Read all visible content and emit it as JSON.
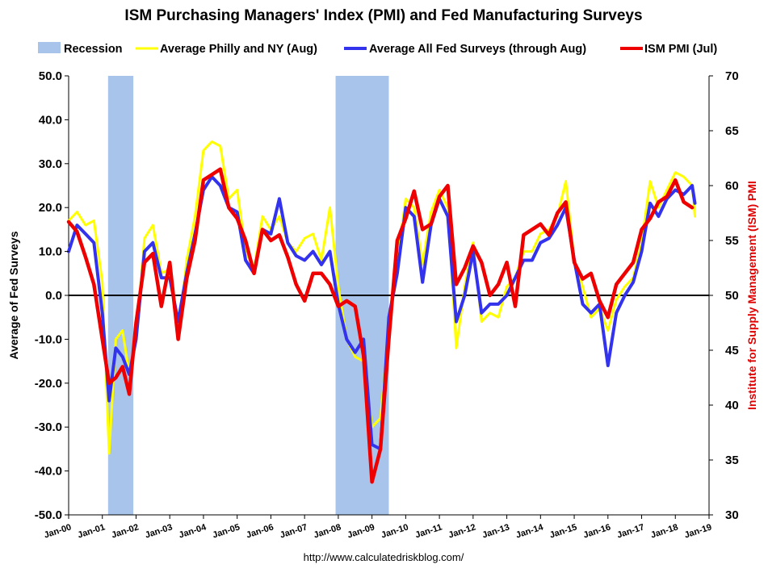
{
  "chart_data": {
    "type": "line",
    "title": "ISM Purchasing Managers' Index (PMI) and Fed Manufacturing Surveys",
    "ylabel": "Average of Fed Surveys",
    "y2label": "Institute for Supply Management (ISM) PMI",
    "source": "http://www.calculatedriskblog.com/",
    "ylim": [
      -50,
      50
    ],
    "y2lim": [
      30,
      70
    ],
    "yticks": [
      "50.0",
      "40.0",
      "30.0",
      "20.0",
      "10.0",
      "0.0",
      "-10.0",
      "-20.0",
      "-30.0",
      "-40.0",
      "-50.0"
    ],
    "y2ticks": [
      "70",
      "65",
      "60",
      "55",
      "50",
      "45",
      "40",
      "35",
      "30"
    ],
    "xlim": [
      2000.0,
      2019.0
    ],
    "xticks": [
      "Jan-00",
      "Jan-01",
      "Jan-02",
      "Jan-03",
      "Jan-04",
      "Jan-05",
      "Jan-06",
      "Jan-07",
      "Jan-08",
      "Jan-09",
      "Jan-10",
      "Jan-11",
      "Jan-12",
      "Jan-13",
      "Jan-14",
      "Jan-15",
      "Jan-16",
      "Jan-17",
      "Jan-18",
      "Jan-19"
    ],
    "grid": false,
    "zero_line": true,
    "legend_position": "top",
    "recessions": [
      {
        "label": "Recession",
        "start": 2001.17,
        "end": 2001.92,
        "color": "#a9c4eb"
      },
      {
        "label": "Recession",
        "start": 2007.92,
        "end": 2009.5,
        "color": "#a9c4eb"
      }
    ],
    "series": [
      {
        "name": "Average Philly and NY (Aug)",
        "axis": "left",
        "color": "#ffff00",
        "width": 3,
        "x": [
          2000.0,
          2000.25,
          2000.5,
          2000.75,
          2001.0,
          2001.2,
          2001.4,
          2001.6,
          2001.8,
          2002.0,
          2002.25,
          2002.5,
          2002.75,
          2003.0,
          2003.25,
          2003.5,
          2003.75,
          2004.0,
          2004.25,
          2004.5,
          2004.75,
          2005.0,
          2005.25,
          2005.5,
          2005.75,
          2006.0,
          2006.25,
          2006.5,
          2006.75,
          2007.0,
          2007.25,
          2007.5,
          2007.75,
          2008.0,
          2008.25,
          2008.5,
          2008.75,
          2009.0,
          2009.25,
          2009.5,
          2009.75,
          2010.0,
          2010.25,
          2010.5,
          2010.75,
          2011.0,
          2011.25,
          2011.5,
          2011.75,
          2012.0,
          2012.25,
          2012.5,
          2012.75,
          2013.0,
          2013.25,
          2013.5,
          2013.75,
          2014.0,
          2014.25,
          2014.5,
          2014.75,
          2015.0,
          2015.25,
          2015.5,
          2015.75,
          2016.0,
          2016.25,
          2016.5,
          2016.75,
          2017.0,
          2017.25,
          2017.5,
          2017.75,
          2018.0,
          2018.25,
          2018.5,
          2018.58
        ],
        "values": [
          17,
          19,
          16,
          17,
          3,
          -36,
          -10,
          -8,
          -18,
          -10,
          13,
          16,
          5,
          6,
          -10,
          8,
          18,
          33,
          35,
          34,
          22,
          24,
          10,
          6,
          18,
          15,
          18,
          12,
          10,
          13,
          14,
          8,
          20,
          2,
          -10,
          -14,
          -15,
          -30,
          -28,
          -8,
          8,
          22,
          20,
          7,
          19,
          24,
          20,
          -12,
          2,
          12,
          -6,
          -4,
          -5,
          2,
          4,
          10,
          10,
          14,
          15,
          18,
          26,
          8,
          2,
          -5,
          -3,
          -8,
          -1,
          2,
          4,
          12,
          26,
          20,
          24,
          28,
          27,
          25,
          18
        ]
      },
      {
        "name": "Average All Fed Surveys (through Aug)",
        "axis": "left",
        "color": "#3333ee",
        "width": 4,
        "x": [
          2000.0,
          2000.25,
          2000.5,
          2000.75,
          2001.0,
          2001.2,
          2001.4,
          2001.6,
          2001.8,
          2002.0,
          2002.25,
          2002.5,
          2002.75,
          2003.0,
          2003.25,
          2003.5,
          2003.75,
          2004.0,
          2004.25,
          2004.5,
          2004.75,
          2005.0,
          2005.25,
          2005.5,
          2005.75,
          2006.0,
          2006.25,
          2006.5,
          2006.75,
          2007.0,
          2007.25,
          2007.5,
          2007.75,
          2008.0,
          2008.25,
          2008.5,
          2008.75,
          2009.0,
          2009.25,
          2009.5,
          2009.75,
          2010.0,
          2010.25,
          2010.5,
          2010.75,
          2011.0,
          2011.25,
          2011.5,
          2011.75,
          2012.0,
          2012.25,
          2012.5,
          2012.75,
          2013.0,
          2013.25,
          2013.5,
          2013.75,
          2014.0,
          2014.25,
          2014.5,
          2014.75,
          2015.0,
          2015.25,
          2015.5,
          2015.75,
          2016.0,
          2016.25,
          2016.5,
          2016.75,
          2017.0,
          2017.25,
          2017.5,
          2017.75,
          2018.0,
          2018.25,
          2018.5,
          2018.58
        ],
        "values": [
          10,
          16,
          14,
          12,
          -4,
          -24,
          -12,
          -14,
          -18,
          -10,
          10,
          12,
          4,
          4,
          -6,
          5,
          14,
          24,
          27,
          25,
          20,
          19,
          8,
          5,
          15,
          14,
          22,
          12,
          9,
          8,
          10,
          7,
          10,
          -2,
          -10,
          -13,
          -10,
          -34,
          -35,
          -5,
          5,
          20,
          18,
          3,
          16,
          22,
          18,
          -6,
          0,
          10,
          -4,
          -2,
          -2,
          0,
          4,
          8,
          8,
          12,
          13,
          16,
          20,
          8,
          -2,
          -4,
          -2,
          -16,
          -4,
          0,
          3,
          10,
          21,
          18,
          22,
          24,
          23,
          25,
          21
        ]
      },
      {
        "name": "ISM PMI (Jul)",
        "axis": "right",
        "color": "#ee0000",
        "width": 4.5,
        "x": [
          2000.0,
          2000.25,
          2000.5,
          2000.75,
          2001.0,
          2001.2,
          2001.4,
          2001.6,
          2001.8,
          2002.0,
          2002.25,
          2002.5,
          2002.75,
          2003.0,
          2003.25,
          2003.5,
          2003.75,
          2004.0,
          2004.25,
          2004.5,
          2004.75,
          2005.0,
          2005.25,
          2005.5,
          2005.75,
          2006.0,
          2006.25,
          2006.5,
          2006.75,
          2007.0,
          2007.25,
          2007.5,
          2007.75,
          2008.0,
          2008.25,
          2008.5,
          2008.75,
          2009.0,
          2009.25,
          2009.5,
          2009.75,
          2010.0,
          2010.25,
          2010.5,
          2010.75,
          2011.0,
          2011.25,
          2011.5,
          2011.75,
          2012.0,
          2012.25,
          2012.5,
          2012.75,
          2013.0,
          2013.25,
          2013.5,
          2013.75,
          2014.0,
          2014.25,
          2014.5,
          2014.75,
          2015.0,
          2015.25,
          2015.5,
          2015.75,
          2016.0,
          2016.25,
          2016.5,
          2016.75,
          2017.0,
          2017.25,
          2017.5,
          2017.75,
          2018.0,
          2018.25,
          2018.5
        ],
        "values": [
          56.7,
          55.8,
          53.5,
          51.0,
          46.0,
          42.0,
          42.5,
          43.5,
          41.0,
          47.5,
          53.0,
          53.8,
          49.0,
          53.0,
          46.0,
          51.5,
          55.0,
          60.5,
          61.0,
          61.5,
          58.0,
          57.0,
          55.0,
          52.0,
          56.0,
          55.0,
          55.5,
          53.5,
          51.0,
          49.5,
          52.0,
          52.0,
          51.0,
          49.0,
          49.5,
          49.0,
          44.5,
          33.0,
          36.0,
          46.0,
          55.0,
          57.0,
          59.5,
          56.0,
          56.5,
          59.0,
          60.0,
          51.0,
          52.5,
          54.5,
          53.0,
          50.0,
          51.0,
          53.0,
          49.0,
          55.5,
          56.0,
          56.5,
          55.5,
          57.5,
          58.5,
          53.0,
          51.5,
          52.0,
          49.5,
          48.0,
          51.0,
          52.0,
          53.0,
          56.0,
          57.0,
          58.5,
          59.0,
          60.5,
          58.5,
          58.0
        ]
      }
    ]
  }
}
